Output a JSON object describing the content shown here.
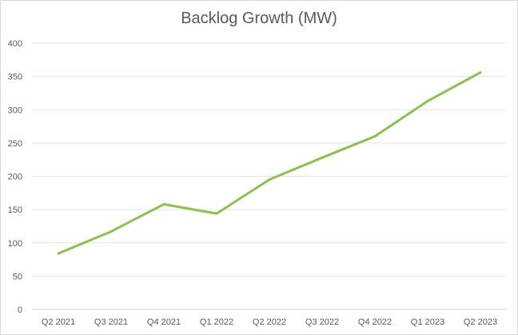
{
  "chart_data": {
    "type": "line",
    "title": "Backlog Growth (MW)",
    "xlabel": "",
    "ylabel": "",
    "categories": [
      "Q2 2021",
      "Q3 2021",
      "Q4 2021",
      "Q1 2022",
      "Q2 2022",
      "Q3 2022",
      "Q4 2022",
      "Q1 2023",
      "Q2 2023"
    ],
    "series": [
      {
        "values": [
          84,
          117,
          158,
          144,
          195,
          228,
          260,
          313,
          356
        ],
        "color": "#8cc152"
      }
    ],
    "ylim": [
      0,
      400
    ],
    "yticks": [
      0,
      50,
      100,
      150,
      200,
      250,
      300,
      350,
      400
    ],
    "grid": true,
    "legend": "none"
  }
}
